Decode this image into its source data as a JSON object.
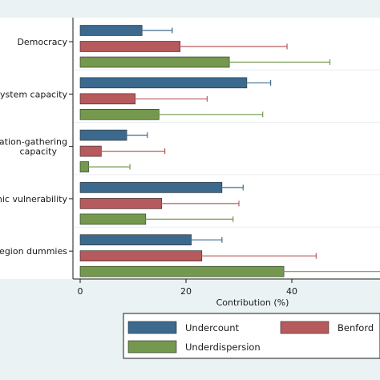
{
  "chart_data": {
    "type": "bar",
    "orientation": "horizontal",
    "xlabel": "Contribution (%)",
    "xlim": [
      0,
      56
    ],
    "xticks": [
      0,
      20,
      40
    ],
    "grid": false,
    "legend_position": "bottom",
    "categories": [
      {
        "label": "Democracy",
        "lines": [
          "Democracy"
        ]
      },
      {
        "label": "ystem capacity",
        "lines": [
          "ystem capacity"
        ]
      },
      {
        "label": "ation-gathering capacity",
        "lines": [
          "ation-gathering",
          "capacity"
        ]
      },
      {
        "label": "nic vulnerability",
        "lines": [
          "nic vulnerability"
        ]
      },
      {
        "label": "egion dummies",
        "lines": [
          "egion dummies"
        ]
      }
    ],
    "series": [
      {
        "name": "Undercount",
        "color": "#3c6a8e",
        "values": [
          11.7,
          31.5,
          8.8,
          26.8,
          21.0
        ],
        "error_low": [
          6.8,
          27.0,
          5.8,
          23.5,
          15.7
        ],
        "error_high": [
          17.4,
          36.0,
          12.7,
          30.8,
          26.8
        ]
      },
      {
        "name": "Benford",
        "color": "#b75a5d",
        "values": [
          18.9,
          10.4,
          4.0,
          15.4,
          23.0
        ],
        "error_low": [
          5.0,
          4.3,
          0.3,
          6.3,
          9.3
        ],
        "error_high": [
          39.1,
          24.0,
          16.0,
          30.0,
          44.6
        ]
      },
      {
        "name": "Underdispersion",
        "color": "#74984d",
        "values": [
          28.2,
          14.9,
          1.6,
          12.4,
          38.5
        ],
        "error_low": [
          11.8,
          3.7,
          0.2,
          4.3,
          16.3
        ],
        "error_high": [
          47.2,
          34.5,
          9.4,
          28.9,
          57.0
        ]
      }
    ]
  }
}
